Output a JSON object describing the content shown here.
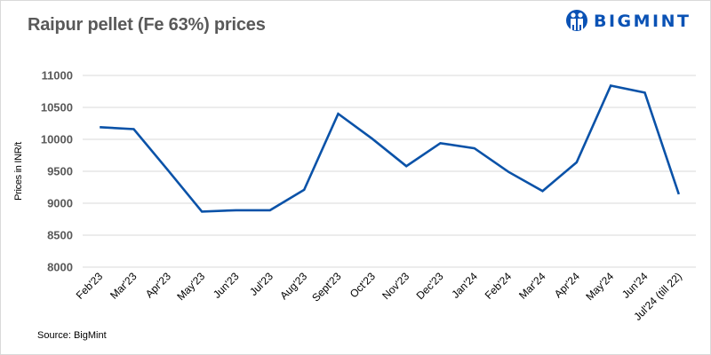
{
  "header": {
    "title": "Raipur pellet (Fe 63%) prices",
    "brand": "BIGMINT",
    "logo_icon": "bigmint-people-icon"
  },
  "footer": {
    "source": "Source: BigMint"
  },
  "colors": {
    "line": "#0a52a8",
    "grid": "#d9d9d9",
    "brand": "#0a52b5",
    "title": "#595959"
  },
  "chart_data": {
    "type": "line",
    "title": "Raipur pellet (Fe 63%) prices",
    "xlabel": "",
    "ylabel": "Prices in INR/t",
    "ylim": [
      8000,
      11000
    ],
    "yticks": [
      8000,
      8500,
      9000,
      9500,
      10000,
      10500,
      11000
    ],
    "grid": true,
    "legend": "none",
    "categories": [
      "Feb'23",
      "Mar'23",
      "Apr'23",
      "May'23",
      "Jun'23",
      "Jul'23",
      "Aug'23",
      "Sept'23",
      "Oct'23",
      "Nov'23",
      "Dec'23",
      "Jan'24",
      "Feb'24",
      "Mar'24",
      "Apr'24",
      "May'24",
      "Jun'24",
      "Jul'24 (till 22)"
    ],
    "series": [
      {
        "name": "Raipur pellet (Fe 63%)",
        "values": [
          10190,
          10160,
          9520,
          8870,
          8890,
          8890,
          9210,
          10400,
          10010,
          9580,
          9940,
          9860,
          9490,
          9190,
          9640,
          10840,
          10730,
          9140
        ]
      }
    ],
    "source": "Source: BigMint"
  }
}
